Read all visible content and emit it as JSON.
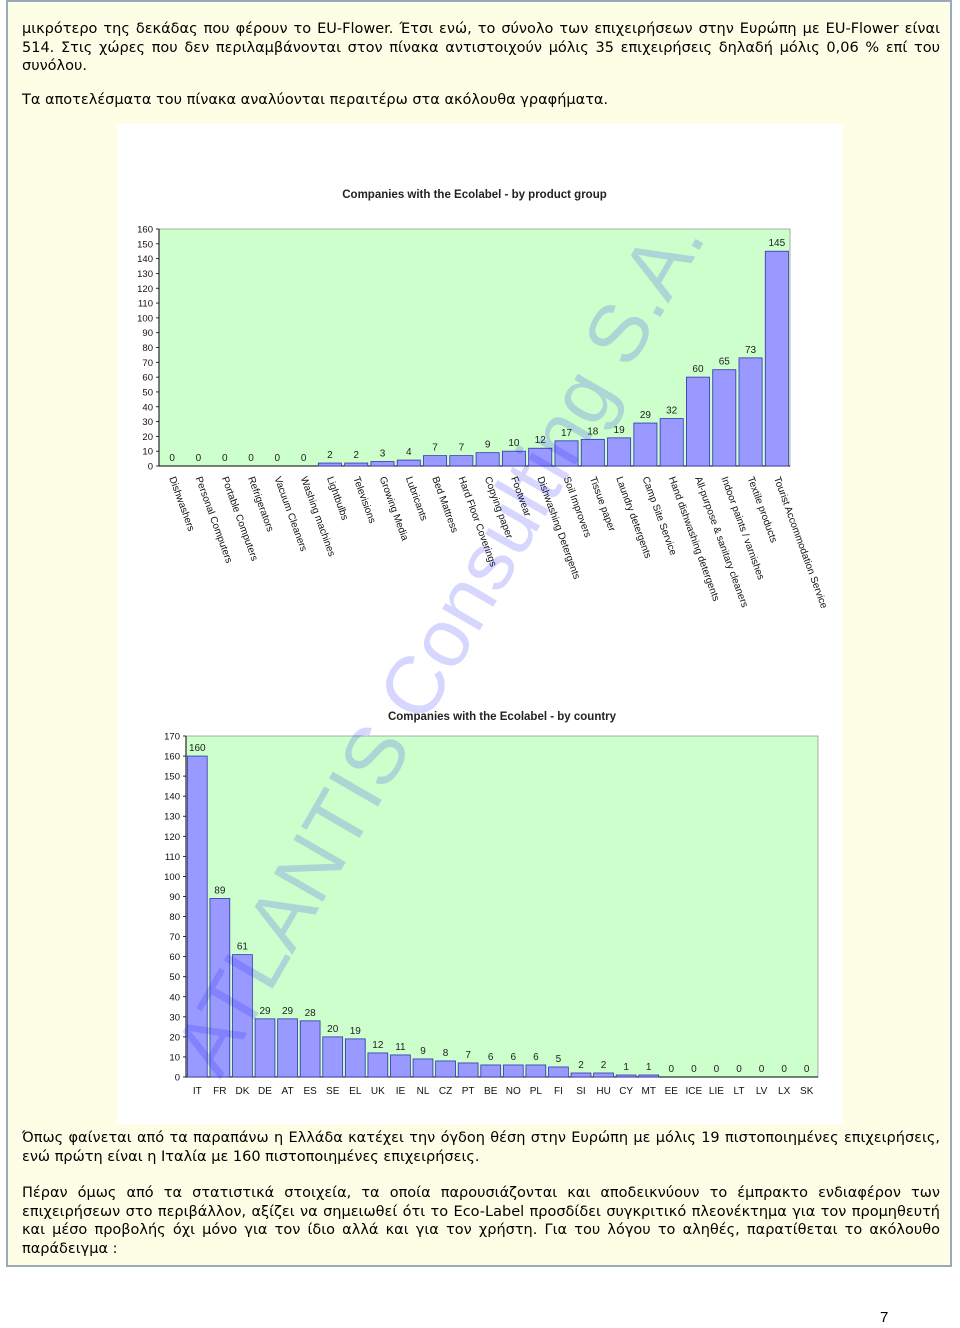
{
  "paragraphs": {
    "p1": "μικρότερο της δεκάδας που φέρουν το EU-Flower. Έτσι ενώ, το σύνολο των επιχειρήσεων στην Ευρώπη με EU-Flower είναι 514. Στις χώρες που δεν περιλαμβάνονται στον πίνακα αντιστοιχούν μόλις 35 επιχειρήσεις δηλαδή μόλις 0,06 % επί του συνόλου.",
    "p2": "Τα αποτελέσματα του πίνακα αναλύονται περαιτέρω στα ακόλουθα γραφήματα.",
    "p3": "Όπως φαίνεται από τα παραπάνω η Ελλάδα κατέχει την όγδοη θέση στην Ευρώπη με μόλις 19 πιστοποιημένες επιχειρήσεις, ενώ πρώτη είναι η Ιταλία με 160 πιστοποιημένες επιχειρήσεις.",
    "p4": "Πέραν όμως από τα στατιστικά στοιχεία, τα οποία παρουσιάζονται και αποδεικνύουν το έμπρακτο ενδιαφέρον των επιχειρήσεων στο περιβάλλον, αξίζει να σημειωθεί ότι το Eco-Label προσδίδει συγκριτικό πλεονέκτημα για τον προμηθευτή και μέσο προβολής όχι μόνο για τον ίδιο αλλά και για τον χρήστη. Για του λόγου το αληθές, παρατίθεται το ακόλουθο παράδειγμα :"
  },
  "page_number": "7",
  "watermark": "ATLANTIS Consulting S.A.",
  "colors": {
    "plot_bg": "#ccffcc",
    "bar_fill": "#9999ff",
    "bar_stroke": "#3333aa",
    "frame_bg": "#fefee6"
  },
  "chart_data": [
    {
      "type": "bar",
      "title": "Companies with the Ecolabel - by product group",
      "categories": [
        "Dishwashers",
        "Personal Computers",
        "Portable Computers",
        "Refrigerators",
        "Vacuum Cleaners",
        "Washing machines",
        "Lightbulbs",
        "Televisions",
        "Growing Media",
        "Lubricants",
        "Bed Mattress",
        "Hard Floor Coverings",
        "Copying paper",
        "Footwear",
        "Dishwashing Detergents",
        "Soil Improvers",
        "Tissue paper",
        "Laundry detergents",
        "Camp Site Service",
        "Hand dishwashing detergents",
        "All-purpose & sanitary cleaners",
        "Indoor paints / varnishes",
        "Textile products",
        "Tourist Accommodation Service"
      ],
      "values": [
        0,
        0,
        0,
        0,
        0,
        0,
        2,
        2,
        3,
        4,
        7,
        7,
        9,
        10,
        12,
        17,
        18,
        19,
        29,
        32,
        60,
        65,
        73,
        145
      ],
      "ylim": [
        0,
        160
      ],
      "yticks": [
        0,
        10,
        20,
        30,
        40,
        50,
        60,
        70,
        80,
        90,
        100,
        110,
        120,
        130,
        140,
        150,
        160
      ],
      "grid": false,
      "legend": "none"
    },
    {
      "type": "bar",
      "title": "Companies with the Ecolabel - by country",
      "categories": [
        "IT",
        "FR",
        "DK",
        "DE",
        "AT",
        "ES",
        "SE",
        "EL",
        "UK",
        "IE",
        "NL",
        "CZ",
        "PT",
        "BE",
        "NO",
        "PL",
        "FI",
        "SI",
        "HU",
        "CY",
        "MT",
        "EE",
        "ICE",
        "LIE",
        "LT",
        "LV",
        "LX",
        "SK"
      ],
      "values": [
        160,
        89,
        61,
        29,
        29,
        28,
        20,
        19,
        12,
        11,
        9,
        8,
        7,
        6,
        6,
        6,
        5,
        2,
        2,
        1,
        1,
        0,
        0,
        0,
        0,
        0,
        0,
        0
      ],
      "ylim": [
        0,
        170
      ],
      "yticks": [
        0,
        10,
        20,
        30,
        40,
        50,
        60,
        70,
        80,
        90,
        100,
        110,
        120,
        130,
        140,
        150,
        160,
        170
      ],
      "grid": false,
      "legend": "none"
    }
  ]
}
